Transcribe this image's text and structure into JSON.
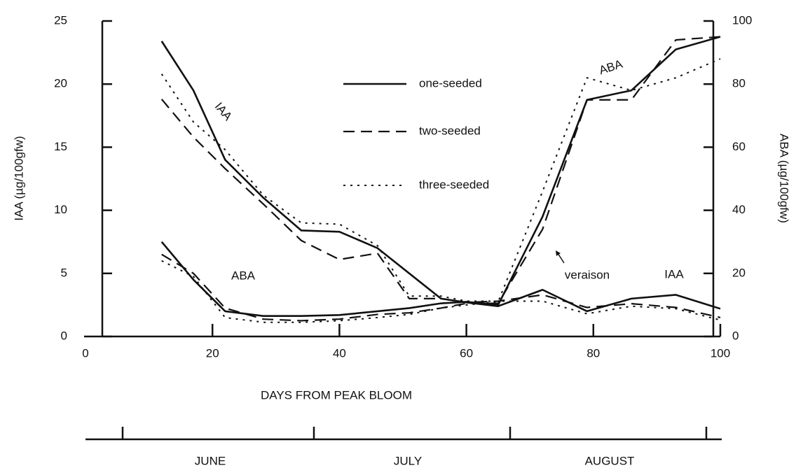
{
  "chart_data": {
    "type": "line",
    "x_label": "DAYS FROM PEAK BLOOM",
    "y_label": "IAA (µg/100gfw)",
    "y2_label": "ABA (µg/100gfw)",
    "xlim": [
      0,
      100
    ],
    "xticks": [
      0,
      20,
      40,
      60,
      80,
      100
    ],
    "ylim": [
      0,
      25
    ],
    "yticks": [
      0,
      5,
      10,
      15,
      20,
      25
    ],
    "y2lim": [
      0,
      100
    ],
    "y2ticks": [
      0,
      20,
      40,
      60,
      80,
      100
    ],
    "x": [
      12,
      17,
      22,
      28,
      34,
      40,
      46,
      51,
      56,
      60,
      65,
      72,
      79,
      86,
      93,
      100
    ],
    "series": [
      {
        "name": "one-seeded",
        "color": "#111111",
        "dash": "solid",
        "values": [
          23.4,
          19.5,
          14,
          11,
          8.4,
          8.3,
          7,
          5,
          3,
          2.7,
          2.4,
          3.7,
          2.0,
          3.0,
          3.3,
          2.2
        ]
      },
      {
        "name": "two-seeded",
        "color": "#111111",
        "dash": "dashed",
        "values": [
          18.8,
          15.8,
          13.3,
          10.5,
          7.6,
          6.1,
          6.6,
          3.0,
          3.0,
          2.7,
          2.8,
          3.3,
          2.3,
          2.6,
          2.3,
          1.5
        ]
      },
      {
        "name": "three-seeded",
        "color": "#111111",
        "dash": "dotted",
        "values": [
          20.8,
          17,
          14.8,
          11.2,
          9,
          8.9,
          7.2,
          3.2,
          3.2,
          2.8,
          2.8,
          2.8,
          1.8,
          2.4,
          2.2,
          1.3
        ]
      },
      {
        "color": "#111111",
        "dash": "solid",
        "axis": "y2",
        "values": [
          30,
          18,
          8,
          6.5,
          6.5,
          6.8,
          8,
          9,
          10.5,
          11,
          10,
          38,
          75,
          78,
          91,
          95
        ]
      },
      {
        "color": "#111111",
        "dash": "dashed",
        "axis": "y2",
        "values": [
          26,
          20,
          9,
          5.5,
          5,
          5.5,
          7,
          7.5,
          9,
          10.5,
          10.5,
          34,
          75,
          75,
          94,
          95
        ]
      },
      {
        "color": "#111111",
        "dash": "dotted",
        "axis": "y2",
        "values": [
          24,
          19,
          6,
          4.5,
          4.5,
          5,
          6,
          7,
          9,
          10,
          11,
          46,
          82,
          78,
          82,
          88
        ]
      }
    ],
    "annotations": [
      "IAA",
      "ABA",
      "ABA",
      "veraison",
      "IAA"
    ],
    "months": [
      "JUNE",
      "JULY",
      "AUGUST"
    ]
  }
}
